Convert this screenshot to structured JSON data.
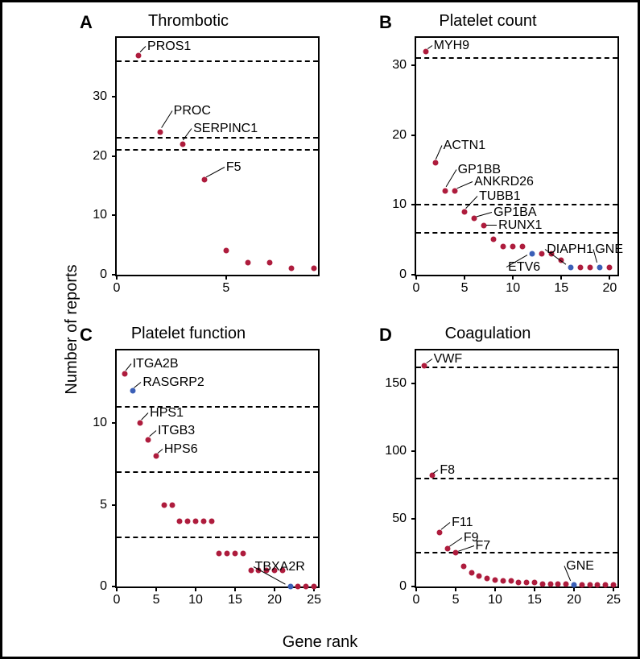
{
  "axis_labels": {
    "x": "Gene rank",
    "y": "Number of reports"
  },
  "colors": {
    "red": "#ae1c3d",
    "blue": "#3b5fb7",
    "frame": "#000000",
    "bg": "#ffffff"
  },
  "marker": {
    "size": 7,
    "shape": "circle"
  },
  "line": {
    "dash": "4 4",
    "width": 2
  },
  "font": {
    "title_size": 20,
    "tick_size": 16,
    "ann_size": 16,
    "letter_size": 22,
    "family": "Arial"
  },
  "panels": [
    {
      "letter": "A",
      "title": "Thrombotic",
      "xlim": [
        0,
        9.2
      ],
      "ylim": [
        0,
        40
      ],
      "xticks": [
        0,
        5
      ],
      "yticks": [
        0,
        10,
        20,
        30
      ],
      "hlines": [
        36,
        23,
        21
      ],
      "points": [
        {
          "x": 1,
          "y": 37,
          "c": "red"
        },
        {
          "x": 2,
          "y": 24,
          "c": "red"
        },
        {
          "x": 3,
          "y": 22,
          "c": "red"
        },
        {
          "x": 4,
          "y": 16,
          "c": "red"
        },
        {
          "x": 5,
          "y": 4,
          "c": "red"
        },
        {
          "x": 6,
          "y": 2,
          "c": "red"
        },
        {
          "x": 7,
          "y": 2,
          "c": "red"
        },
        {
          "x": 8,
          "y": 1,
          "c": "red"
        },
        {
          "x": 9,
          "y": 1,
          "c": "red"
        }
      ],
      "annotations": [
        {
          "label": "PROS1",
          "tx": 1.4,
          "ty": 38.5,
          "px": 1,
          "py": 37
        },
        {
          "label": "PROC",
          "tx": 2.6,
          "ty": 27.5,
          "px": 2,
          "py": 24
        },
        {
          "label": "SERPINC1",
          "tx": 3.5,
          "ty": 24.5,
          "px": 3,
          "py": 22
        },
        {
          "label": "F5",
          "tx": 5.0,
          "ty": 18,
          "px": 4,
          "py": 16
        }
      ]
    },
    {
      "letter": "B",
      "title": "Platelet count",
      "xlim": [
        0,
        20.8
      ],
      "ylim": [
        0,
        34
      ],
      "xticks": [
        0,
        5,
        10,
        15,
        20
      ],
      "yticks": [
        0,
        10,
        20,
        30
      ],
      "hlines": [
        31,
        10,
        6
      ],
      "points": [
        {
          "x": 1,
          "y": 32,
          "c": "red"
        },
        {
          "x": 2,
          "y": 16,
          "c": "red"
        },
        {
          "x": 3,
          "y": 12,
          "c": "red"
        },
        {
          "x": 4,
          "y": 12,
          "c": "red"
        },
        {
          "x": 5,
          "y": 9,
          "c": "red"
        },
        {
          "x": 6,
          "y": 8,
          "c": "red"
        },
        {
          "x": 7,
          "y": 7,
          "c": "red"
        },
        {
          "x": 8,
          "y": 5,
          "c": "red"
        },
        {
          "x": 9,
          "y": 4,
          "c": "red"
        },
        {
          "x": 10,
          "y": 4,
          "c": "red"
        },
        {
          "x": 11,
          "y": 4,
          "c": "red"
        },
        {
          "x": 12,
          "y": 3,
          "c": "blue"
        },
        {
          "x": 13,
          "y": 3,
          "c": "red"
        },
        {
          "x": 14,
          "y": 3,
          "c": "red"
        },
        {
          "x": 15,
          "y": 2,
          "c": "red"
        },
        {
          "x": 16,
          "y": 1,
          "c": "blue"
        },
        {
          "x": 17,
          "y": 1,
          "c": "red"
        },
        {
          "x": 18,
          "y": 1,
          "c": "red"
        },
        {
          "x": 19,
          "y": 1,
          "c": "blue"
        },
        {
          "x": 20,
          "y": 1,
          "c": "red"
        }
      ],
      "annotations": [
        {
          "label": "MYH9",
          "tx": 1.8,
          "ty": 32.8,
          "px": 1,
          "py": 32
        },
        {
          "label": "ACTN1",
          "tx": 2.8,
          "ty": 18.5,
          "px": 2,
          "py": 16
        },
        {
          "label": "GP1BB",
          "tx": 4.3,
          "ty": 15,
          "px": 3,
          "py": 12
        },
        {
          "label": "ANKRD26",
          "tx": 6.0,
          "ty": 13.2,
          "px": 4,
          "py": 12
        },
        {
          "label": "TUBB1",
          "tx": 6.5,
          "ty": 11.2,
          "px": 5,
          "py": 9
        },
        {
          "label": "GP1BA",
          "tx": 8.0,
          "ty": 8.8,
          "px": 6,
          "py": 8
        },
        {
          "label": "RUNX1",
          "tx": 8.5,
          "ty": 7,
          "px": 7,
          "py": 7
        },
        {
          "label": "ETV6",
          "tx": 9.5,
          "ty": 1.0,
          "px": 12,
          "py": 3,
          "below": true
        },
        {
          "label": "DIAPH1",
          "tx": 13.5,
          "ty": 3.5,
          "px": 16,
          "py": 1
        },
        {
          "label": "GNE",
          "tx": 18.5,
          "ty": 3.5,
          "px": 19,
          "py": 1
        }
      ]
    },
    {
      "letter": "C",
      "title": "Platelet function",
      "xlim": [
        0,
        25.5
      ],
      "ylim": [
        0,
        14.5
      ],
      "xticks": [
        0,
        5,
        10,
        15,
        20,
        25
      ],
      "yticks": [
        0,
        5,
        10
      ],
      "hlines": [
        11,
        7,
        3
      ],
      "points": [
        {
          "x": 1,
          "y": 13,
          "c": "red"
        },
        {
          "x": 2,
          "y": 12,
          "c": "blue"
        },
        {
          "x": 3,
          "y": 10,
          "c": "red"
        },
        {
          "x": 4,
          "y": 9,
          "c": "red"
        },
        {
          "x": 5,
          "y": 8,
          "c": "red"
        },
        {
          "x": 6,
          "y": 5,
          "c": "red"
        },
        {
          "x": 7,
          "y": 5,
          "c": "red"
        },
        {
          "x": 8,
          "y": 4,
          "c": "red"
        },
        {
          "x": 9,
          "y": 4,
          "c": "red"
        },
        {
          "x": 10,
          "y": 4,
          "c": "red"
        },
        {
          "x": 11,
          "y": 4,
          "c": "red"
        },
        {
          "x": 12,
          "y": 4,
          "c": "red"
        },
        {
          "x": 13,
          "y": 2,
          "c": "red"
        },
        {
          "x": 14,
          "y": 2,
          "c": "red"
        },
        {
          "x": 15,
          "y": 2,
          "c": "red"
        },
        {
          "x": 16,
          "y": 2,
          "c": "red"
        },
        {
          "x": 17,
          "y": 1,
          "c": "red"
        },
        {
          "x": 18,
          "y": 1,
          "c": "red"
        },
        {
          "x": 19,
          "y": 1,
          "c": "red"
        },
        {
          "x": 20,
          "y": 1,
          "c": "red"
        },
        {
          "x": 21,
          "y": 1,
          "c": "red"
        },
        {
          "x": 22,
          "y": 0,
          "c": "blue"
        },
        {
          "x": 23,
          "y": 0,
          "c": "red"
        },
        {
          "x": 24,
          "y": 0,
          "c": "red"
        },
        {
          "x": 25,
          "y": 0,
          "c": "red"
        }
      ],
      "annotations": [
        {
          "label": "ITGA2B",
          "tx": 2.0,
          "ty": 13.6,
          "px": 1,
          "py": 13
        },
        {
          "label": "RASGRP2",
          "tx": 3.3,
          "ty": 12.5,
          "px": 2,
          "py": 12
        },
        {
          "label": "HPS1",
          "tx": 4.2,
          "ty": 10.6,
          "px": 3,
          "py": 10
        },
        {
          "label": "ITGB3",
          "tx": 5.2,
          "ty": 9.5,
          "px": 4,
          "py": 9
        },
        {
          "label": "HPS6",
          "tx": 6.0,
          "ty": 8.4,
          "px": 5,
          "py": 8
        },
        {
          "label": "TBXA2R",
          "tx": 17.5,
          "ty": 1.2,
          "px": 22,
          "py": 0
        }
      ]
    },
    {
      "letter": "D",
      "title": "Coagulation",
      "xlim": [
        0,
        25.5
      ],
      "ylim": [
        0,
        175
      ],
      "xticks": [
        0,
        5,
        10,
        15,
        20,
        25
      ],
      "yticks": [
        0,
        50,
        100,
        150
      ],
      "hlines": [
        162,
        80,
        25
      ],
      "points": [
        {
          "x": 1,
          "y": 163,
          "c": "red"
        },
        {
          "x": 2,
          "y": 82,
          "c": "red"
        },
        {
          "x": 3,
          "y": 40,
          "c": "red"
        },
        {
          "x": 4,
          "y": 28,
          "c": "red"
        },
        {
          "x": 5,
          "y": 25,
          "c": "red"
        },
        {
          "x": 6,
          "y": 15,
          "c": "red"
        },
        {
          "x": 7,
          "y": 10,
          "c": "red"
        },
        {
          "x": 8,
          "y": 8,
          "c": "red"
        },
        {
          "x": 9,
          "y": 6,
          "c": "red"
        },
        {
          "x": 10,
          "y": 5,
          "c": "red"
        },
        {
          "x": 11,
          "y": 4,
          "c": "red"
        },
        {
          "x": 12,
          "y": 4,
          "c": "red"
        },
        {
          "x": 13,
          "y": 3,
          "c": "red"
        },
        {
          "x": 14,
          "y": 3,
          "c": "red"
        },
        {
          "x": 15,
          "y": 3,
          "c": "red"
        },
        {
          "x": 16,
          "y": 2,
          "c": "red"
        },
        {
          "x": 17,
          "y": 2,
          "c": "red"
        },
        {
          "x": 18,
          "y": 2,
          "c": "red"
        },
        {
          "x": 19,
          "y": 2,
          "c": "red"
        },
        {
          "x": 20,
          "y": 1,
          "c": "blue"
        },
        {
          "x": 21,
          "y": 1,
          "c": "red"
        },
        {
          "x": 22,
          "y": 1,
          "c": "red"
        },
        {
          "x": 23,
          "y": 1,
          "c": "red"
        },
        {
          "x": 24,
          "y": 1,
          "c": "red"
        },
        {
          "x": 25,
          "y": 1,
          "c": "red"
        }
      ],
      "annotations": [
        {
          "label": "VWF",
          "tx": 2.2,
          "ty": 168,
          "px": 1,
          "py": 163
        },
        {
          "label": "F8",
          "tx": 3.0,
          "ty": 86,
          "px": 2,
          "py": 82
        },
        {
          "label": "F11",
          "tx": 4.5,
          "ty": 47,
          "px": 3,
          "py": 40
        },
        {
          "label": "F9",
          "tx": 6.0,
          "ty": 36,
          "px": 4,
          "py": 28
        },
        {
          "label": "F7",
          "tx": 7.5,
          "ty": 30,
          "px": 5,
          "py": 25
        },
        {
          "label": "GNE",
          "tx": 19,
          "ty": 15,
          "px": 20,
          "py": 1
        }
      ]
    }
  ]
}
